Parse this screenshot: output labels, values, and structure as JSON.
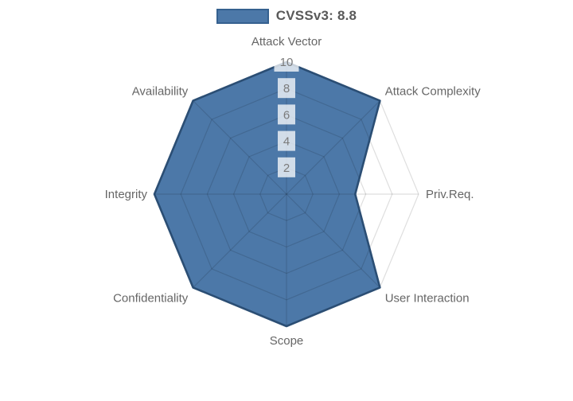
{
  "legend": {
    "items": [
      {
        "label": "CVSSv3: 8.8",
        "swatch_fill": "#4C78A8",
        "swatch_border": "#35618F"
      }
    ]
  },
  "chart_data": {
    "type": "radar",
    "title": "",
    "categories": [
      "Attack Vector",
      "Attack Complexity",
      "Priv.Req.",
      "User Interaction",
      "Scope",
      "Confidentiality",
      "Integrity",
      "Availability"
    ],
    "series": [
      {
        "name": "CVSSv3: 8.8",
        "values": [
          10,
          10,
          5.2,
          10,
          10,
          10,
          10,
          10
        ]
      }
    ],
    "r_axis": {
      "min": 0,
      "max": 10,
      "tick_step": 2,
      "ticks": [
        "2",
        "4",
        "6",
        "8",
        "10"
      ]
    },
    "legend_position": "top",
    "grid": true,
    "grid_shape": "polygon",
    "colors": {
      "fill": "#4C78A8",
      "border": "#2B4E74",
      "grid": "rgba(0,0,0,0.13)",
      "tick_text": "#7b7b7b",
      "tick_backdrop": "rgba(255,255,255,0.75)",
      "point_label_text": "#666666"
    }
  }
}
